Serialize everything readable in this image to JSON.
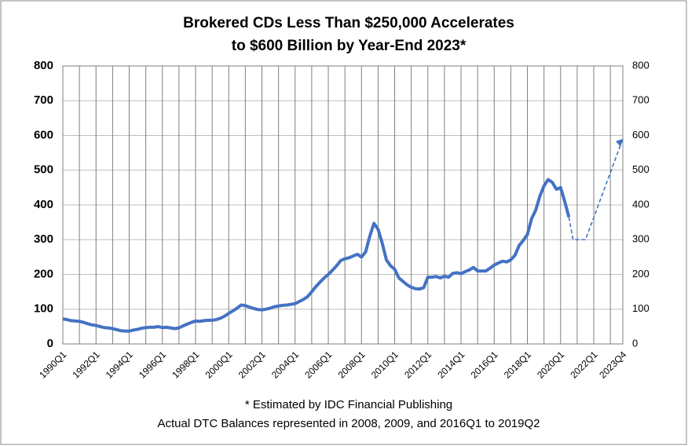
{
  "chart_data": {
    "type": "line",
    "title": [
      "Brokered CDs Less Than $250,000 Accelerates",
      "to $600 Billion by Year-End 2023*"
    ],
    "annotations": [
      "* Estimated by IDC Financial Publishing",
      "Actual DTC Balances represented in 2008, 2009, and 2016Q1 to 2019Q2"
    ],
    "categories": [
      "1990Q1",
      null,
      null,
      null,
      null,
      null,
      null,
      null,
      "1992Q1",
      null,
      null,
      null,
      null,
      null,
      null,
      null,
      "1994Q1",
      null,
      null,
      null,
      null,
      null,
      null,
      null,
      "1996Q1",
      null,
      null,
      null,
      null,
      null,
      null,
      null,
      "1998Q1",
      null,
      null,
      null,
      null,
      null,
      null,
      null,
      "2000Q1",
      null,
      null,
      null,
      null,
      null,
      null,
      null,
      "2002Q1",
      null,
      null,
      null,
      null,
      null,
      null,
      null,
      "2004Q1",
      null,
      null,
      null,
      null,
      null,
      null,
      null,
      "2006Q1",
      null,
      null,
      null,
      null,
      null,
      null,
      null,
      "2008Q1",
      null,
      null,
      null,
      null,
      null,
      null,
      null,
      "2010Q1",
      null,
      null,
      null,
      null,
      null,
      null,
      null,
      "2012Q1",
      null,
      null,
      null,
      null,
      null,
      null,
      null,
      "2014Q1",
      null,
      null,
      null,
      null,
      null,
      null,
      null,
      "2016Q1",
      null,
      null,
      null,
      null,
      null,
      null,
      null,
      "2018Q1",
      null,
      null,
      null,
      null,
      null,
      null,
      null,
      "2020Q1",
      null,
      null,
      null,
      null,
      null,
      null,
      null,
      "2022Q1",
      null,
      null,
      null,
      null,
      null,
      null,
      "2023Q4"
    ],
    "series": [
      {
        "name": "Actual",
        "color": "#4472c4",
        "dashed": false,
        "values": [
          72,
          70,
          67,
          66,
          65,
          62,
          58,
          55,
          53,
          50,
          47,
          46,
          44,
          41,
          38,
          37,
          37,
          40,
          42,
          45,
          47,
          48,
          48,
          50,
          47,
          48,
          46,
          44,
          46,
          52,
          57,
          62,
          66,
          65,
          67,
          68,
          68,
          70,
          74,
          80,
          88,
          95,
          103,
          112,
          110,
          106,
          102,
          99,
          98,
          100,
          103,
          107,
          109,
          111,
          112,
          114,
          116,
          122,
          128,
          136,
          150,
          165,
          178,
          190,
          200,
          212,
          225,
          240,
          245,
          248,
          253,
          258,
          250,
          265,
          310,
          347,
          330,
          290,
          242,
          225,
          215,
          190,
          180,
          170,
          163,
          159,
          158,
          162,
          192,
          192,
          194,
          190,
          195,
          192,
          203,
          205,
          202,
          208,
          213,
          220,
          210,
          210,
          210,
          218,
          227,
          233,
          238,
          236,
          242,
          255,
          283,
          298,
          315,
          360,
          385,
          425,
          455,
          473,
          465,
          445,
          450,
          410,
          365,
          null,
          null,
          null,
          null,
          null,
          null,
          null,
          null,
          null,
          null,
          null,
          null,
          null
        ]
      },
      {
        "name": "Estimated",
        "color": "#4472c4",
        "dashed": true,
        "values": [
          null,
          null,
          null,
          null,
          null,
          null,
          null,
          null,
          null,
          null,
          null,
          null,
          null,
          null,
          null,
          null,
          null,
          null,
          null,
          null,
          null,
          null,
          null,
          null,
          null,
          null,
          null,
          null,
          null,
          null,
          null,
          null,
          null,
          null,
          null,
          null,
          null,
          null,
          null,
          null,
          null,
          null,
          null,
          null,
          null,
          null,
          null,
          null,
          null,
          null,
          null,
          null,
          null,
          null,
          null,
          null,
          null,
          null,
          null,
          null,
          null,
          null,
          null,
          null,
          null,
          null,
          null,
          null,
          null,
          null,
          null,
          null,
          null,
          null,
          null,
          null,
          null,
          null,
          null,
          null,
          null,
          null,
          null,
          null,
          null,
          null,
          null,
          null,
          null,
          null,
          null,
          null,
          null,
          null,
          null,
          null,
          null,
          null,
          null,
          null,
          null,
          null,
          null,
          null,
          null,
          null,
          null,
          null,
          null,
          null,
          null,
          null,
          null,
          null,
          null,
          null,
          null,
          null,
          null,
          null,
          null,
          null,
          365,
          300,
          300,
          300,
          300,
          332,
          364,
          396,
          429,
          461,
          493,
          525,
          558,
          590
        ]
      }
    ],
    "ylim": [
      0,
      800
    ],
    "yticks": [
      0,
      100,
      200,
      300,
      400,
      500,
      600,
      700,
      800
    ],
    "y2lim": [
      0,
      800
    ],
    "y2ticks": [
      0,
      100,
      200,
      300,
      400,
      500,
      600,
      700,
      800
    ],
    "grid": true,
    "legend": false
  }
}
